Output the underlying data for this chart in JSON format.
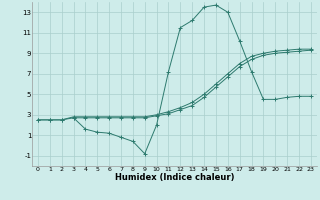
{
  "xlabel": "Humidex (Indice chaleur)",
  "bg_color": "#ceecea",
  "line_color": "#2d7a6e",
  "grid_color": "#aacfcc",
  "xlim": [
    -0.5,
    23.5
  ],
  "ylim": [
    -2.0,
    14.0
  ],
  "xticks": [
    0,
    1,
    2,
    3,
    4,
    5,
    6,
    7,
    8,
    9,
    10,
    11,
    12,
    13,
    14,
    15,
    16,
    17,
    18,
    19,
    20,
    21,
    22,
    23
  ],
  "yticks": [
    -1,
    1,
    3,
    5,
    7,
    9,
    11,
    13
  ],
  "curve1_x": [
    0,
    1,
    2,
    3,
    4,
    5,
    6,
    7,
    8,
    9,
    10,
    11,
    12,
    13,
    14,
    15,
    16,
    17,
    18,
    19,
    20,
    21,
    22,
    23
  ],
  "curve1_y": [
    2.5,
    2.5,
    2.5,
    2.8,
    2.8,
    2.8,
    2.8,
    2.8,
    2.8,
    2.8,
    3.0,
    3.3,
    3.7,
    4.2,
    5.0,
    6.0,
    7.0,
    8.0,
    8.7,
    9.0,
    9.2,
    9.3,
    9.4,
    9.4
  ],
  "curve2_x": [
    0,
    1,
    2,
    3,
    4,
    5,
    6,
    7,
    8,
    9,
    10,
    11,
    12,
    13,
    14,
    15,
    16,
    17,
    18,
    19,
    20,
    21,
    22,
    23
  ],
  "curve2_y": [
    2.5,
    2.5,
    2.5,
    2.7,
    2.7,
    2.7,
    2.7,
    2.7,
    2.7,
    2.7,
    2.9,
    3.1,
    3.5,
    3.9,
    4.7,
    5.7,
    6.7,
    7.7,
    8.4,
    8.8,
    9.0,
    9.1,
    9.2,
    9.3
  ],
  "curve3_x": [
    3,
    4,
    5,
    6,
    7,
    8,
    9,
    10,
    11,
    12,
    13,
    14,
    15,
    16,
    17,
    18,
    19,
    20,
    21,
    22,
    23
  ],
  "curve3_y": [
    2.7,
    1.6,
    1.3,
    1.2,
    0.8,
    0.4,
    -0.8,
    2.0,
    7.2,
    11.5,
    12.2,
    13.5,
    13.7,
    13.0,
    10.2,
    7.2,
    4.5,
    4.5,
    4.7,
    4.8,
    4.8
  ],
  "marker": "+",
  "markersize": 2.5,
  "lw": 0.7
}
